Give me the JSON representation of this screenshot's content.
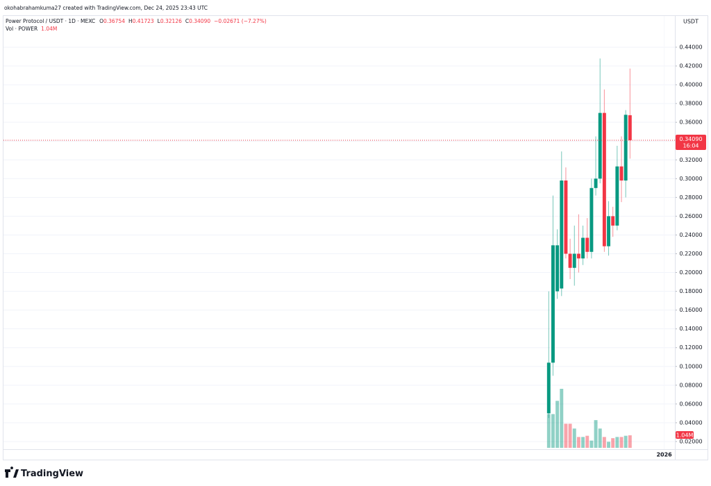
{
  "chart_data": {
    "type": "candlestick",
    "credit": "okohabrahamkuma27 created with TradingView.com, Dec 24, 2025 23:43 UTC",
    "symbol": "Power Protocol / USDT · 1D · MEXC",
    "quote": [
      {
        "key": "O",
        "value": "0.36754"
      },
      {
        "key": "H",
        "value": "0.41723"
      },
      {
        "key": "L",
        "value": "0.32126"
      },
      {
        "key": "C",
        "value": "0.34090"
      }
    ],
    "change": "−0.02671 (−7.27%)",
    "volume_key": "Vol · POWER",
    "volume_label": "1.04M",
    "currency": "USDT",
    "brand": "TradingView",
    "countdown": "16:04",
    "last_price": {
      "value": 0.3409,
      "label": "0.34090"
    },
    "categories": [
      null,
      null,
      null,
      null,
      null,
      null,
      null,
      null,
      null,
      null,
      null,
      null,
      null,
      null,
      null,
      null,
      null,
      null,
      null,
      null
    ],
    "open": [
      0.05,
      0.104,
      0.18,
      0.183,
      0.298,
      0.22,
      0.205,
      0.22,
      0.215,
      0.237,
      0.222,
      0.29,
      0.3,
      0.37,
      0.228,
      0.26,
      0.25,
      0.313,
      0.298,
      0.36754
    ],
    "high": [
      0.18,
      0.282,
      0.246,
      0.329,
      0.312,
      0.236,
      0.25,
      0.262,
      0.25,
      0.258,
      0.3,
      0.345,
      0.428,
      0.395,
      0.276,
      0.27,
      0.335,
      0.345,
      0.373,
      0.41723
    ],
    "low": [
      0.045,
      0.09,
      0.172,
      0.175,
      0.215,
      0.193,
      0.186,
      0.2,
      0.208,
      0.215,
      0.215,
      0.282,
      0.295,
      0.222,
      0.218,
      0.238,
      0.245,
      0.275,
      0.28,
      0.32126
    ],
    "close": [
      0.104,
      0.229,
      0.229,
      0.298,
      0.22,
      0.205,
      0.22,
      0.215,
      0.237,
      0.222,
      0.29,
      0.3,
      0.37,
      0.228,
      0.26,
      0.25,
      0.313,
      0.298,
      0.368,
      0.3409
    ],
    "volume": [
      2800000,
      2800000,
      3900000,
      4900000,
      2000000,
      2000000,
      1600000,
      900000,
      900000,
      1000000,
      600000,
      2300000,
      1600000,
      900000,
      500000,
      800000,
      900000,
      900000,
      1000000,
      1040000
    ],
    "up_color": "#089981",
    "down_color": "#f23645",
    "grid": true,
    "xlim": [
      -127.5,
      29.5
    ],
    "xticks": [
      {
        "value": 27,
        "label": "2026"
      }
    ],
    "ylim": [
      0,
      0.47
    ],
    "yticks": [
      {
        "value": 0.02,
        "label": "0.02000"
      },
      {
        "value": 0.04,
        "label": "0.04000"
      },
      {
        "value": 0.06,
        "label": "0.06000"
      },
      {
        "value": 0.08,
        "label": "0.08000"
      },
      {
        "value": 0.1,
        "label": "0.10000"
      },
      {
        "value": 0.12,
        "label": "0.12000"
      },
      {
        "value": 0.14,
        "label": "0.14000"
      },
      {
        "value": 0.16,
        "label": "0.16000"
      },
      {
        "value": 0.18,
        "label": "0.18000"
      },
      {
        "value": 0.2,
        "label": "0.20000"
      },
      {
        "value": 0.22,
        "label": "0.22000"
      },
      {
        "value": 0.24,
        "label": "0.24000"
      },
      {
        "value": 0.26,
        "label": "0.26000"
      },
      {
        "value": 0.28,
        "label": "0.28000"
      },
      {
        "value": 0.3,
        "label": "0.30000"
      },
      {
        "value": 0.32,
        "label": "0.32000"
      },
      {
        "value": 0.34,
        "label": "0.34000"
      },
      {
        "value": 0.36,
        "label": "0.36000"
      },
      {
        "value": 0.38,
        "label": "0.38000"
      },
      {
        "value": 0.4,
        "label": "0.40000"
      },
      {
        "value": 0.42,
        "label": "0.42000"
      },
      {
        "value": 0.44,
        "label": "0.44000"
      }
    ]
  }
}
